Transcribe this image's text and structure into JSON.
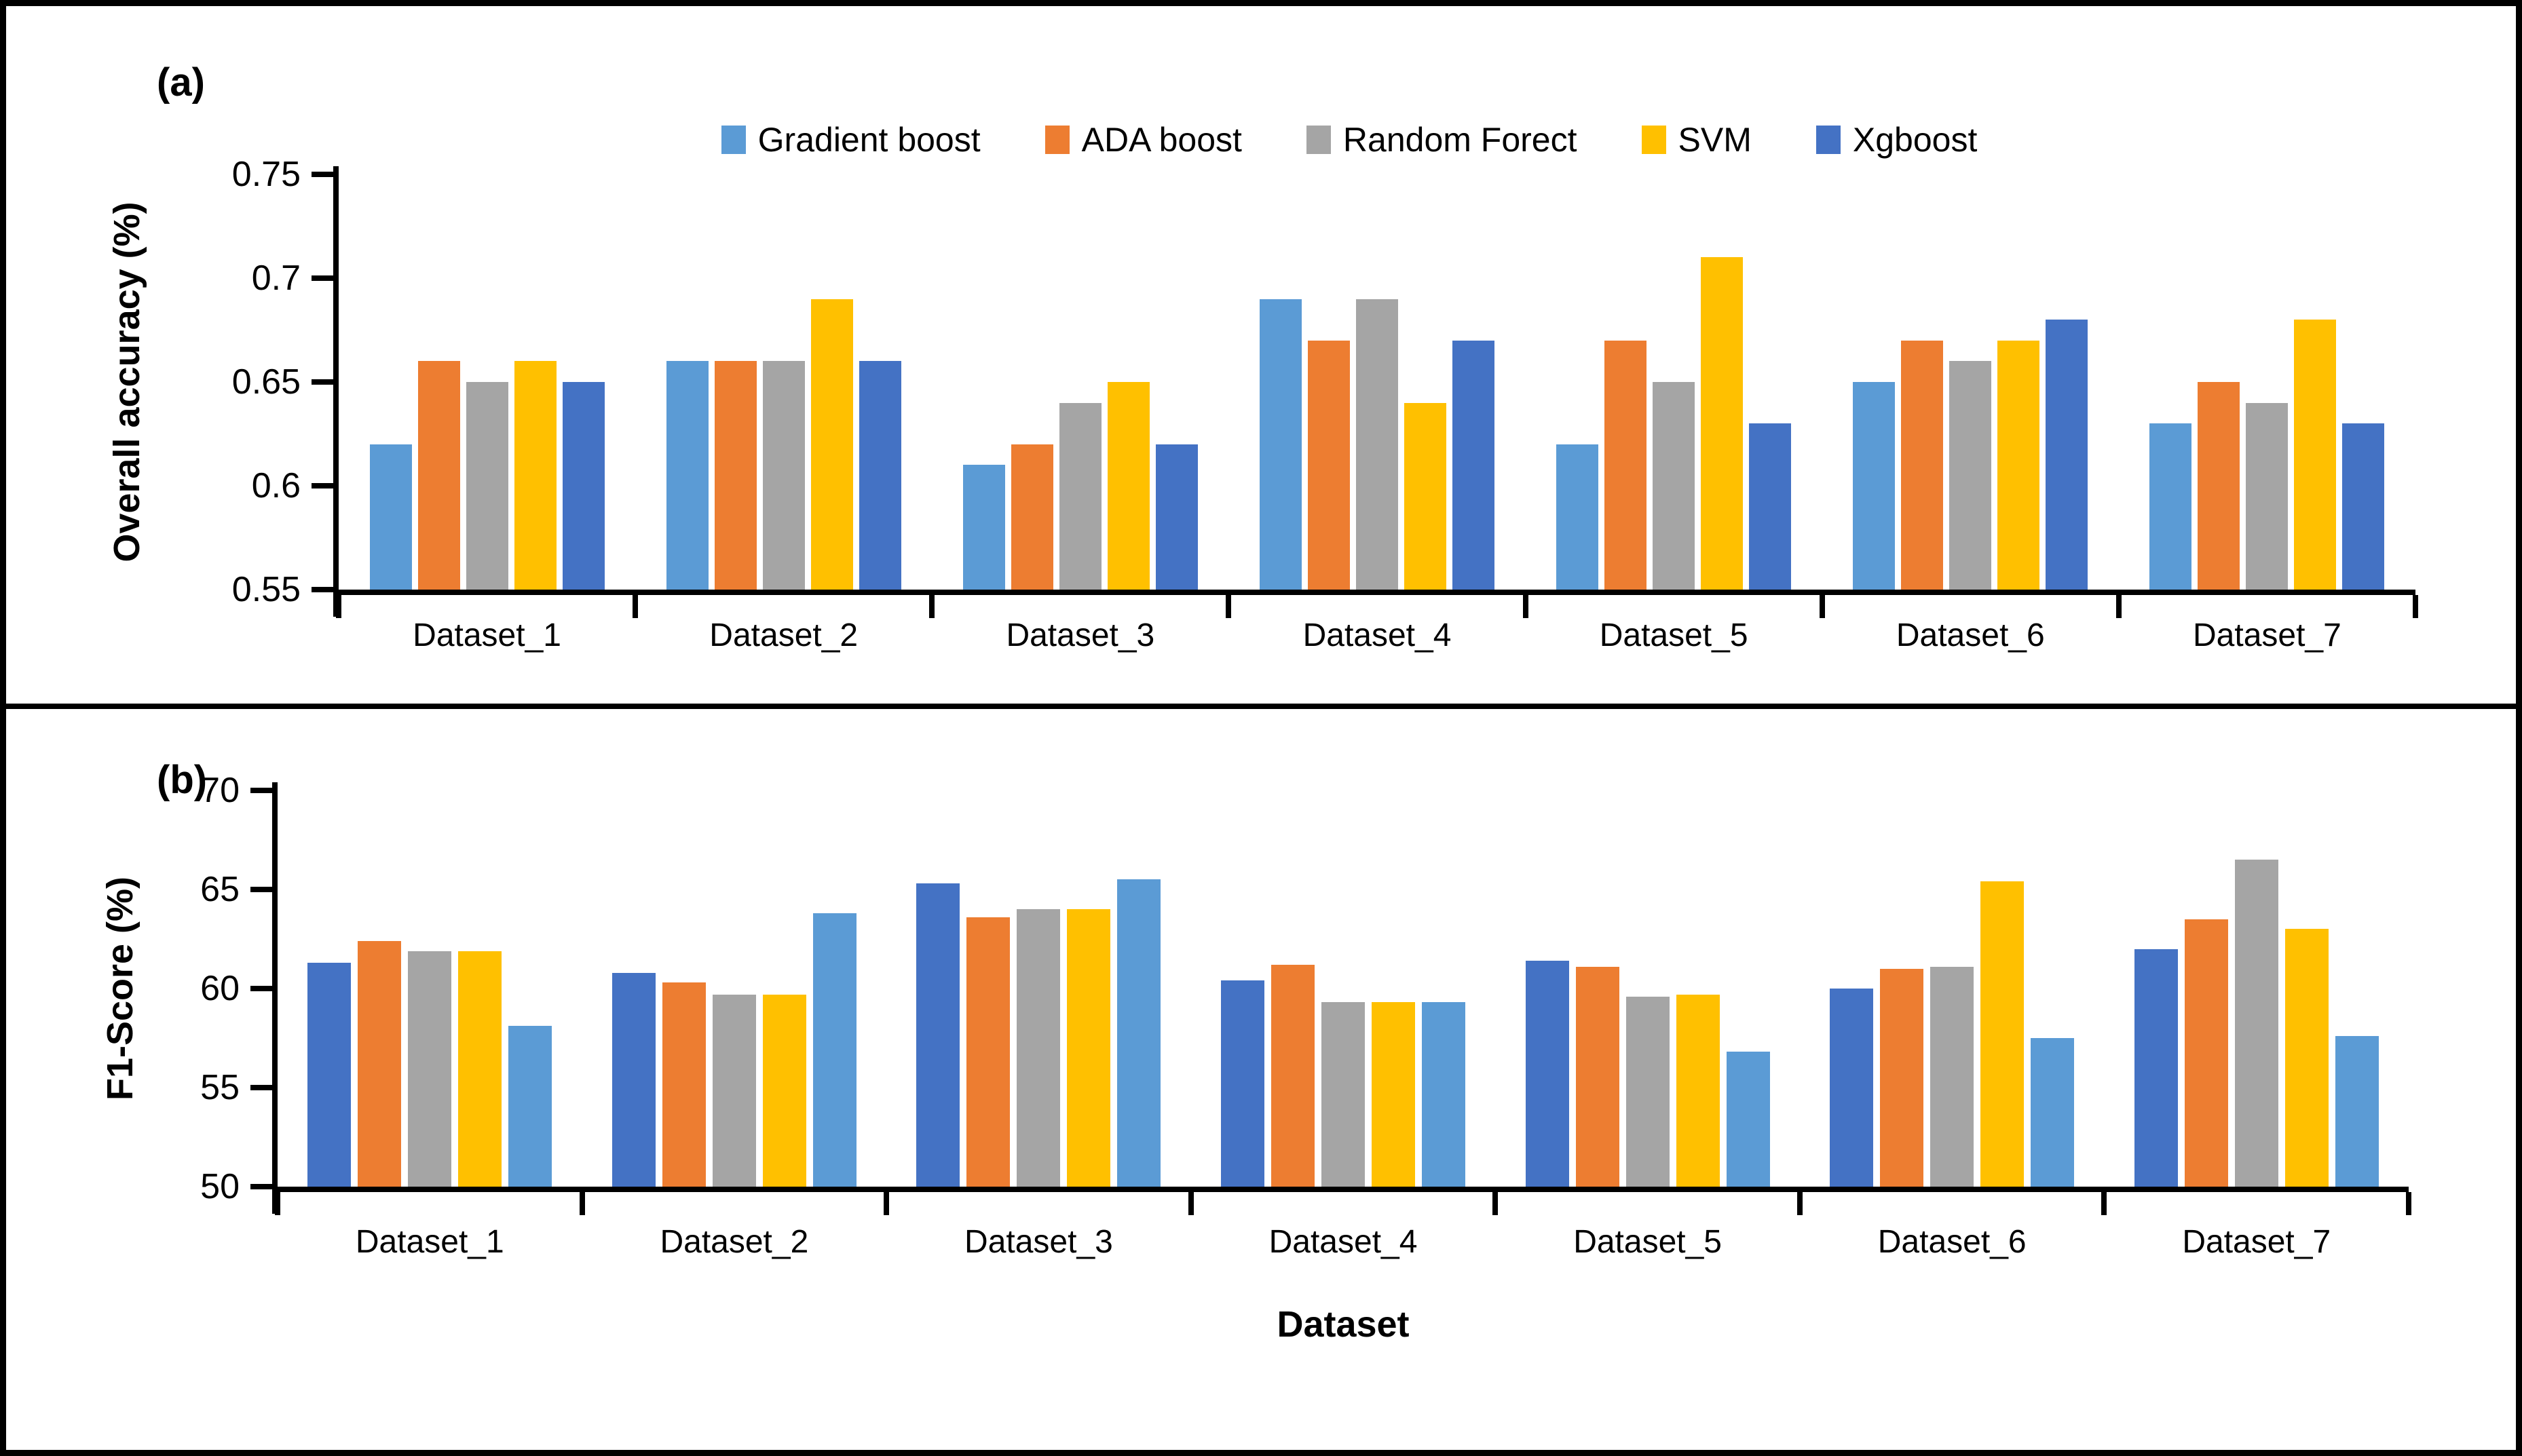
{
  "chart_data": [
    {
      "type": "bar",
      "panel_label": "(a)",
      "ylabel": "Overall accuracy (%)",
      "xlabel": "",
      "ylim": [
        0.55,
        0.75
      ],
      "ytick_labels": [
        "0.75",
        "0.7",
        "0.65",
        "0.6",
        "0.55"
      ],
      "grid": false,
      "legend_position": "top",
      "categories": [
        "Dataset_1",
        "Dataset_2",
        "Dataset_3",
        "Dataset_4",
        "Dataset_5",
        "Dataset_6",
        "Dataset_7"
      ],
      "series": [
        {
          "name": "Gradient boost",
          "color": "#5B9BD5",
          "values": [
            0.62,
            0.66,
            0.61,
            0.69,
            0.62,
            0.65,
            0.63
          ]
        },
        {
          "name": "ADA boost",
          "color": "#ED7D31",
          "values": [
            0.66,
            0.66,
            0.62,
            0.67,
            0.67,
            0.67,
            0.65
          ]
        },
        {
          "name": "Random Forect",
          "color": "#A5A5A5",
          "values": [
            0.65,
            0.66,
            0.64,
            0.69,
            0.65,
            0.66,
            0.64
          ]
        },
        {
          "name": "SVM",
          "color": "#FFC000",
          "values": [
            0.66,
            0.69,
            0.65,
            0.64,
            0.71,
            0.67,
            0.68
          ]
        },
        {
          "name": "Xgboost",
          "color": "#4472C4",
          "values": [
            0.65,
            0.66,
            0.62,
            0.67,
            0.63,
            0.68,
            0.63
          ]
        }
      ]
    },
    {
      "type": "bar",
      "panel_label": "(b)",
      "ylabel": "F1-Score (%)",
      "xlabel": "Dataset",
      "ylim": [
        50,
        70
      ],
      "ytick_labels": [
        "70",
        "65",
        "60",
        "55",
        "50"
      ],
      "grid": false,
      "legend_position": "none",
      "categories": [
        "Dataset_1",
        "Dataset_2",
        "Dataset_3",
        "Dataset_4",
        "Dataset_5",
        "Dataset_6",
        "Dataset_7"
      ],
      "series": [
        {
          "name": "Xgboost",
          "color": "#4472C4",
          "values": [
            61.3,
            60.8,
            65.3,
            60.4,
            61.4,
            60.0,
            62.0
          ]
        },
        {
          "name": "ADA boost",
          "color": "#ED7D31",
          "values": [
            62.4,
            60.3,
            63.6,
            61.2,
            61.1,
            61.0,
            63.5
          ]
        },
        {
          "name": "Random Forect",
          "color": "#A5A5A5",
          "values": [
            61.9,
            59.7,
            64.0,
            59.3,
            59.6,
            61.1,
            66.5
          ]
        },
        {
          "name": "SVM",
          "color": "#FFC000",
          "values": [
            61.9,
            59.7,
            64.0,
            59.3,
            59.7,
            65.4,
            63.0
          ]
        },
        {
          "name": "Gradient boost",
          "color": "#5B9BD5",
          "values": [
            58.1,
            63.8,
            65.5,
            59.3,
            56.8,
            57.5,
            57.6
          ]
        }
      ]
    }
  ]
}
